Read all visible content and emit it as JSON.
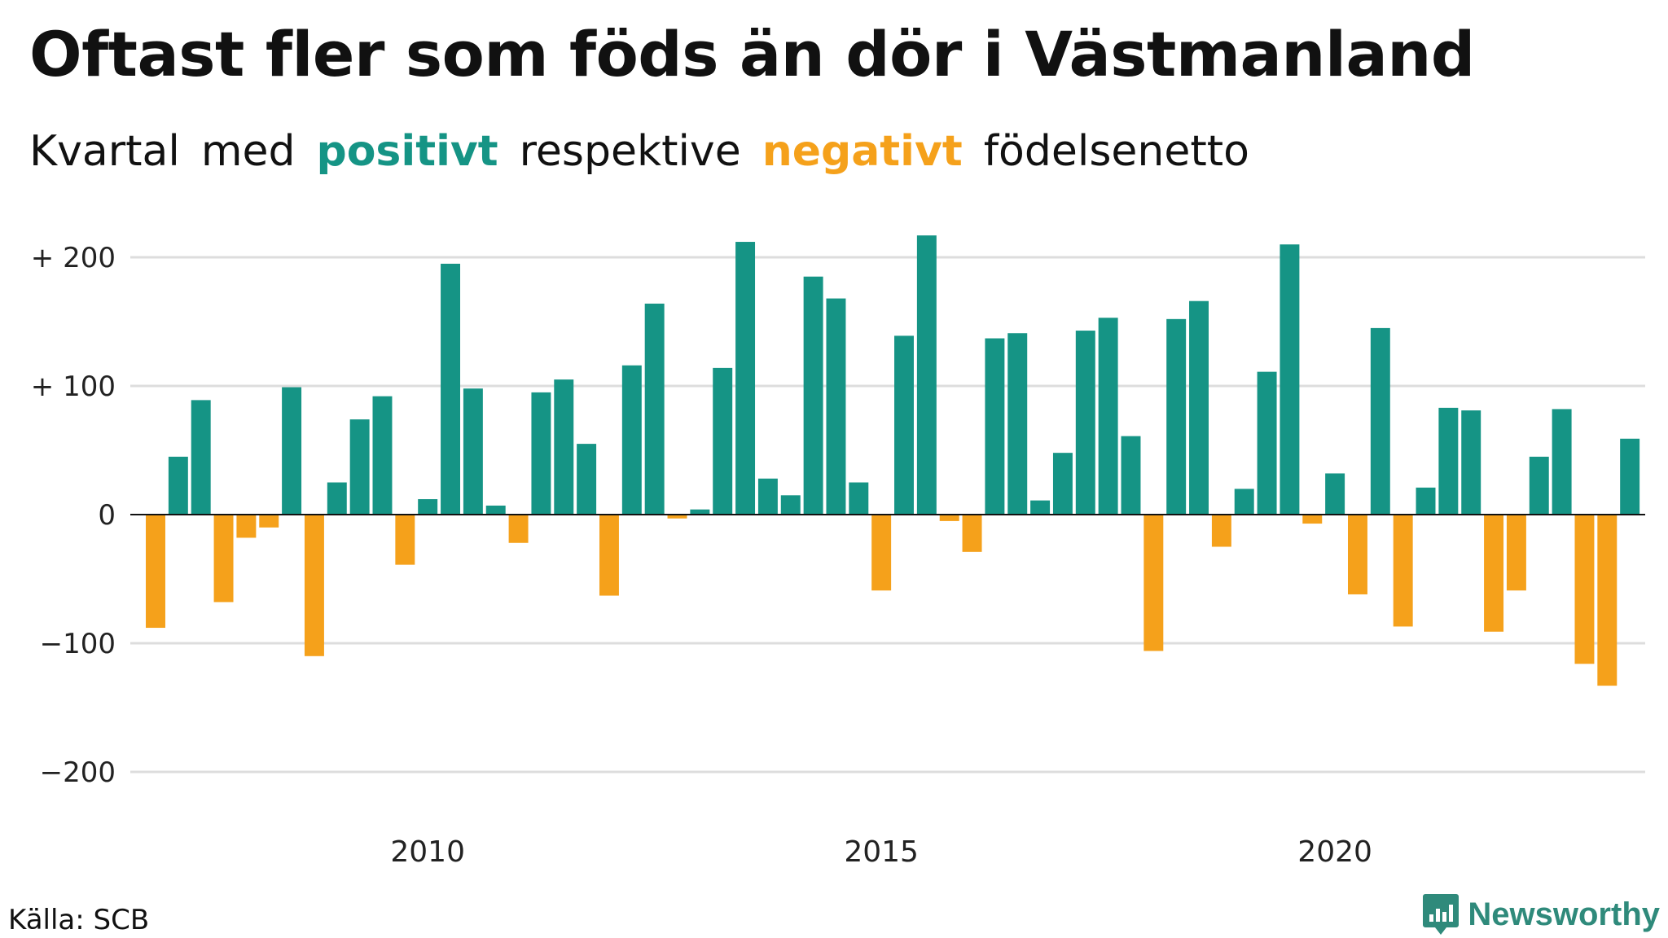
{
  "header": {
    "title": "Oftast fler som föds än dör i Västmanland",
    "subtitle_parts": [
      "Kvartal",
      "med",
      "positivt",
      "respektive",
      "negativt",
      "födelsenetto"
    ]
  },
  "footer": {
    "source": "Källa: SCB",
    "brand": "Newsworthy"
  },
  "colors": {
    "positive": "#159485",
    "negative": "#f5a11b",
    "grid": "#dddddd",
    "zero_line": "#111111"
  },
  "chart_data": {
    "type": "bar",
    "x_start": "2007 Q1",
    "x_ticks": [
      "2010",
      "2015",
      "2020"
    ],
    "y_ticks": [
      "+ 200",
      "+ 100",
      "0",
      "−100",
      "−200"
    ],
    "ylim": [
      -200,
      200
    ],
    "grid": true,
    "values": [
      -88,
      45,
      89,
      -68,
      -18,
      -10,
      99,
      -110,
      25,
      74,
      92,
      -39,
      12,
      195,
      98,
      7,
      -22,
      95,
      105,
      55,
      -63,
      116,
      164,
      -3,
      4,
      114,
      212,
      28,
      15,
      185,
      168,
      25,
      -59,
      139,
      217,
      -5,
      -29,
      137,
      141,
      11,
      48,
      143,
      153,
      61,
      -106,
      152,
      166,
      -25,
      20,
      111,
      210,
      -7,
      32,
      -62,
      145,
      -87,
      21,
      83,
      81,
      -91,
      -59,
      45,
      82,
      -116,
      -133,
      59
    ]
  }
}
